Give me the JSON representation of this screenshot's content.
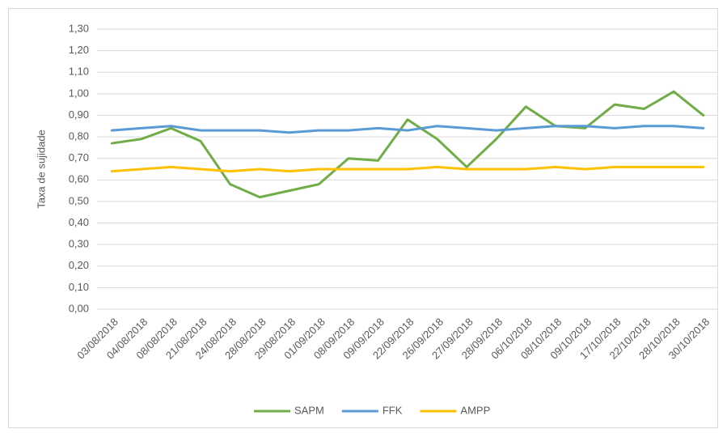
{
  "chart_data": {
    "type": "line",
    "y_label": "Taxa de sujidade",
    "categories": [
      "03/08/2018",
      "04/08/2018",
      "08/08/2018",
      "21/08/2018",
      "24/08/2018",
      "28/08/2018",
      "29/08/2018",
      "01/09/2018",
      "08/09/2018",
      "09/09/2018",
      "22/09/2018",
      "26/09/2018",
      "27/09/2018",
      "28/09/2018",
      "06/10/2018",
      "08/10/2018",
      "09/10/2018",
      "17/10/2018",
      "22/10/2018",
      "28/10/2018",
      "30/10/2018"
    ],
    "series": [
      {
        "name": "SAPM",
        "color": "#70ad47",
        "values": [
          0.77,
          0.79,
          0.84,
          0.78,
          0.58,
          0.52,
          0.55,
          0.58,
          0.7,
          0.69,
          0.88,
          0.79,
          0.66,
          0.79,
          0.94,
          0.85,
          0.84,
          0.95,
          0.93,
          1.01,
          0.9
        ]
      },
      {
        "name": "FFK",
        "color": "#5b9bd5",
        "values": [
          0.83,
          0.84,
          0.85,
          0.83,
          0.83,
          0.83,
          0.82,
          0.83,
          0.83,
          0.84,
          0.83,
          0.85,
          0.84,
          0.83,
          0.84,
          0.85,
          0.85,
          0.84,
          0.85,
          0.85,
          0.84
        ]
      },
      {
        "name": "AMPP",
        "color": "#ffc000",
        "values": [
          0.64,
          0.65,
          0.66,
          0.65,
          0.64,
          0.65,
          0.64,
          0.65,
          0.65,
          0.65,
          0.65,
          0.66,
          0.65,
          0.65,
          0.65,
          0.66,
          0.65,
          0.66,
          0.66,
          0.66,
          0.66
        ]
      }
    ],
    "ylim": [
      0,
      1.3
    ],
    "yticks": [
      {
        "value": 0,
        "label": "0,00"
      },
      {
        "value": 0.1,
        "label": "0,10"
      },
      {
        "value": 0.2,
        "label": "0,20"
      },
      {
        "value": 0.3,
        "label": "0,30"
      },
      {
        "value": 0.4,
        "label": "0,40"
      },
      {
        "value": 0.5,
        "label": "0,50"
      },
      {
        "value": 0.6,
        "label": "0,60"
      },
      {
        "value": 0.7,
        "label": "0,70"
      },
      {
        "value": 0.8,
        "label": "0,80"
      },
      {
        "value": 0.9,
        "label": "0,90"
      },
      {
        "value": 1.0,
        "label": "1,00"
      },
      {
        "value": 1.1,
        "label": "1,10"
      },
      {
        "value": 1.2,
        "label": "1,20"
      },
      {
        "value": 1.3,
        "label": "1,30"
      }
    ],
    "grid": true,
    "legend": "bottom"
  }
}
